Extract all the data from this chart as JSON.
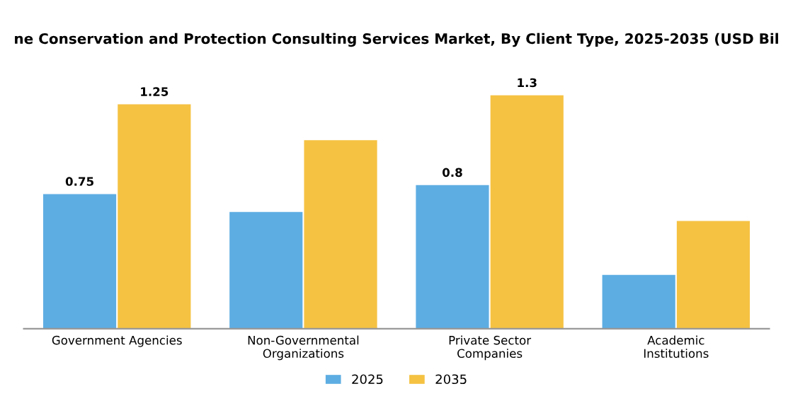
{
  "chart_data": {
    "type": "bar",
    "title": "ne Conservation and Protection Consulting Services Market, By Client Type, 2025-2035 (USD Bil",
    "categories": [
      "Government Agencies",
      "Non-Governmental\nOrganizations",
      "Private Sector\nCompanies",
      "Academic\nInstitutions"
    ],
    "series": [
      {
        "name": "2025",
        "color": "#5dade2",
        "values": [
          0.75,
          0.65,
          0.8,
          0.3
        ],
        "value_labels": [
          "0.75",
          null,
          "0.8",
          null
        ]
      },
      {
        "name": "2035",
        "color": "#f5c242",
        "values": [
          1.25,
          1.05,
          1.3,
          0.6
        ],
        "value_labels": [
          "1.25",
          null,
          "1.3",
          null
        ]
      }
    ],
    "legend": "bottom",
    "grid": false
  }
}
